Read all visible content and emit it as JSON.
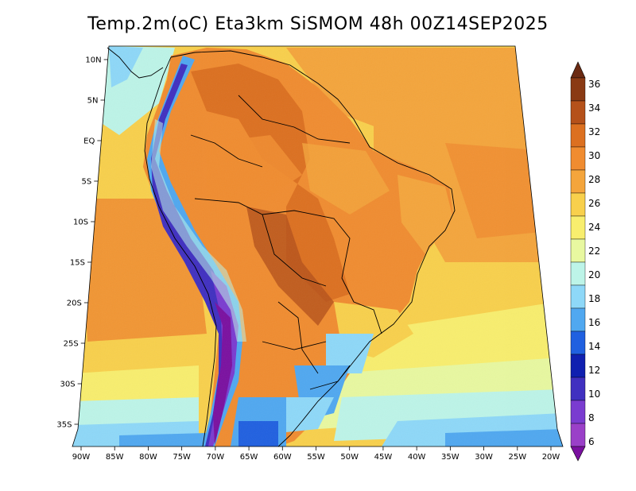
{
  "title": "Temp.2m(oC) Eta3km SiSMOM 48h 00Z14SEP2025",
  "lat_ticks": [
    "10N",
    "5N",
    "EQ",
    "5S",
    "10S",
    "15S",
    "20S",
    "25S",
    "30S",
    "35S"
  ],
  "lon_ticks": [
    "90W",
    "85W",
    "80W",
    "75W",
    "70W",
    "65W",
    "60W",
    "55W",
    "50W",
    "45W",
    "40W",
    "35W",
    "30W",
    "25W",
    "20W"
  ],
  "colorbar": {
    "labels": [
      "36",
      "34",
      "32",
      "30",
      "28",
      "26",
      "24",
      "22",
      "20",
      "18",
      "16",
      "14",
      "12",
      "10",
      "8",
      "6"
    ],
    "colors": [
      "#6b2a12",
      "#8a3a14",
      "#b5511a",
      "#dc7020",
      "#f08c30",
      "#f4a53c",
      "#f8d04c",
      "#f8ee6e",
      "#e8f8a0",
      "#bdf4e8",
      "#8ed8f8",
      "#50a8f0",
      "#2060e0",
      "#1020b0",
      "#4030c0",
      "#7a3cd0",
      "#9a40c8",
      "#7a10a0"
    ]
  }
}
